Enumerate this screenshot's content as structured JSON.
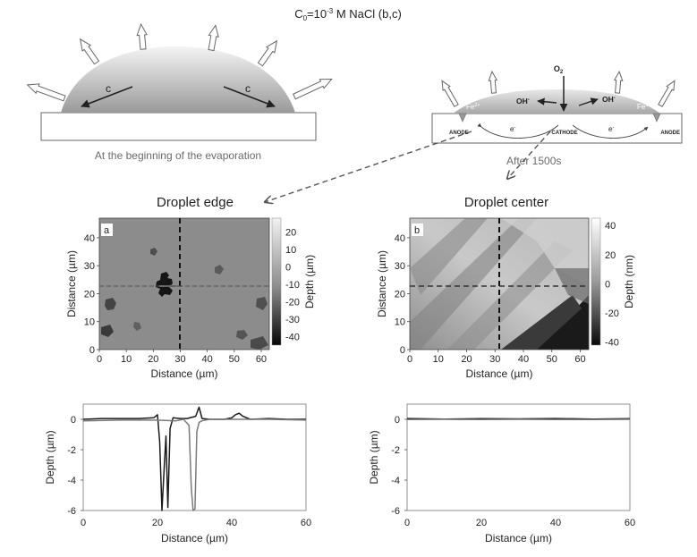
{
  "figure": {
    "condition_parts": [
      "C",
      "0",
      "=10",
      "-3",
      " M NaCl (b,c)"
    ],
    "left_schematic": {
      "caption": "At the beginning of the evaporation",
      "flux_labels": [
        "c",
        "c"
      ]
    },
    "right_schematic": {
      "caption": "After 1500s",
      "o2": "O",
      "o2_sub": "2",
      "oh_left": "OH",
      "oh_right": "OH",
      "oh_sup": "-",
      "fe_left": "Fe",
      "fe_right": "Fe",
      "fe_sup": "2+",
      "electron_left": "e",
      "electron_right": "e",
      "electron_sup": "-",
      "anode_left": "ANODE",
      "cathode": "CATHODE",
      "anode_right": "ANODE"
    },
    "panel_titles": {
      "edge": "Droplet edge",
      "center": "Droplet center"
    },
    "colors": {
      "map_a_background": "#8c8c8c",
      "map_b_background": "#b9b9b9",
      "arrow_fill": "#ffffff",
      "arrow_stroke": "#666666",
      "substrate_stroke": "#666666",
      "droplet_light": "#f4f4f4",
      "droplet_dark": "#9a9a9a"
    }
  },
  "chart_data": [
    {
      "id": "map-a",
      "type": "heatmap",
      "panel_label": "a",
      "xlabel": "Distance (µm)",
      "ylabel": "Distance (µm)",
      "x_ticks": [
        0,
        10,
        20,
        30,
        40,
        50,
        60
      ],
      "y_ticks": [
        0,
        10,
        20,
        30,
        40
      ],
      "xlim": [
        0,
        63
      ],
      "ylim": [
        0,
        47
      ],
      "colorbar": {
        "label": "Depth (µm)",
        "ticks": [
          20,
          10,
          0,
          -10,
          -20,
          -30,
          -40
        ],
        "range": [
          -45,
          28
        ]
      },
      "crosshair": {
        "x": 30,
        "y": 23
      }
    },
    {
      "id": "map-b",
      "type": "heatmap",
      "panel_label": "b",
      "xlabel": "Distance (µm)",
      "ylabel": "Distance (µm)",
      "x_ticks": [
        0,
        10,
        20,
        30,
        40,
        50,
        60
      ],
      "y_ticks": [
        0,
        10,
        20,
        30,
        40
      ],
      "xlim": [
        0,
        63
      ],
      "ylim": [
        0,
        47
      ],
      "colorbar": {
        "label": "Depth (nm)",
        "ticks": [
          40,
          20,
          0,
          -20,
          -40
        ],
        "range": [
          -42,
          45
        ]
      },
      "crosshair": {
        "x": 32,
        "y": 23
      }
    },
    {
      "id": "profile-edge",
      "type": "line",
      "xlabel": "Distance (µm)",
      "ylabel": "Depth (µm)",
      "x_ticks": [
        0,
        20,
        40,
        60
      ],
      "y_ticks": [
        0,
        -2,
        -4,
        -6
      ],
      "xlim": [
        0,
        60
      ],
      "ylim": [
        -6,
        1
      ],
      "series": [
        {
          "color": "#1a1a1a",
          "x": [
            0,
            5,
            10,
            15,
            19,
            20,
            20.6,
            21.2,
            21.8,
            22.3,
            22.8,
            23.4,
            24.2,
            26,
            28,
            30.3,
            31.2,
            32,
            34,
            38,
            40,
            41,
            42,
            43,
            45,
            50,
            55,
            60
          ],
          "y": [
            0,
            0.05,
            0.05,
            0.05,
            0.1,
            0.3,
            -1.5,
            -6,
            -3.2,
            -1.1,
            -5.8,
            -0.6,
            0.1,
            0.05,
            0.05,
            0.2,
            0.8,
            0.05,
            0,
            0,
            0.1,
            0.3,
            0.4,
            0.2,
            0,
            0.05,
            0,
            0
          ]
        },
        {
          "color": "#7a7a7a",
          "x": [
            0,
            10,
            20,
            25,
            27,
            28.5,
            29.1,
            29.6,
            30.1,
            30.6,
            31.2,
            32,
            34,
            40,
            50,
            60
          ],
          "y": [
            -0.1,
            -0.05,
            -0.05,
            -0.1,
            0,
            -0.4,
            -4.5,
            -6,
            -5.9,
            -0.8,
            -0.2,
            -0.1,
            0,
            0,
            0,
            -0.05
          ]
        }
      ]
    },
    {
      "id": "profile-center",
      "type": "line",
      "xlabel": "Distance (µm)",
      "ylabel": "Depth (µm)",
      "x_ticks": [
        0,
        20,
        40,
        60
      ],
      "y_ticks": [
        0,
        -2,
        -4,
        -6
      ],
      "xlim": [
        0,
        60
      ],
      "ylim": [
        -6,
        1
      ],
      "series": [
        {
          "color": "#1a1a1a",
          "x": [
            0,
            10,
            20,
            30,
            40,
            50,
            60
          ],
          "y": [
            0.05,
            0.02,
            0.04,
            0.03,
            0.05,
            0.02,
            0.04
          ]
        },
        {
          "color": "#7a7a7a",
          "x": [
            0,
            10,
            20,
            30,
            40,
            50,
            60
          ],
          "y": [
            -0.02,
            0,
            -0.02,
            0,
            -0.02,
            -0.01,
            0
          ]
        }
      ]
    }
  ]
}
